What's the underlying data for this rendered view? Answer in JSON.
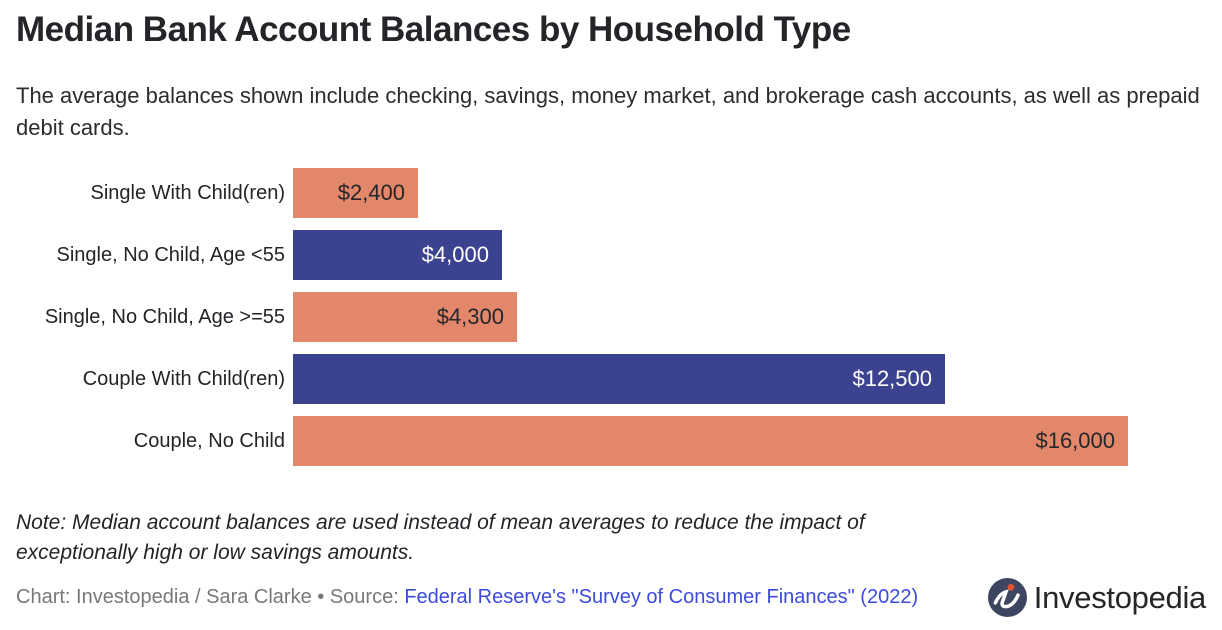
{
  "header": {
    "title": "Median Bank Account Balances by Household Type",
    "subtitle": "The average balances shown include checking, savings, money market, and brokerage cash accounts, as well as prepaid debit cards."
  },
  "chart_data": {
    "type": "bar",
    "orientation": "horizontal",
    "title": "Median Bank Account Balances by Household Type",
    "categories": [
      "Single With Child(ren)",
      "Single, No Child, Age <55",
      "Single, No Child, Age >=55",
      "Couple With Child(ren)",
      "Couple, No Child"
    ],
    "values": [
      2400,
      4000,
      4300,
      12500,
      16000
    ],
    "value_labels": [
      "$2,400",
      "$4,000",
      "$4,300",
      "$12,500",
      "$16,000"
    ],
    "bar_colors": [
      "#e2876a",
      "#3b4290",
      "#e2876a",
      "#3b4290",
      "#e2876a"
    ],
    "value_label_colors": [
      "#26262a",
      "#ffffff",
      "#26262a",
      "#ffffff",
      "#26262a"
    ],
    "xlim": [
      0,
      16000
    ],
    "xlabel": "",
    "ylabel": "",
    "grid": false,
    "legend": false
  },
  "footer": {
    "note": "Note: Median account balances are used instead of mean averages to reduce the impact of exceptionally high or low savings amounts.",
    "credit_prefix": "Chart: Investopedia / Sara Clarke • Source: ",
    "source_link_text": "Federal Reserve's \"Survey of Consumer Finances\" (2022)",
    "logo_text": "Investopedia"
  },
  "colors": {
    "salmon": "#e2876a",
    "navy": "#3b4290",
    "link_blue": "#3c4bdc",
    "credit_gray": "#77787b",
    "text_dark": "#242528",
    "logo_circle": "#3e4560",
    "logo_dot": "#e0552b"
  }
}
